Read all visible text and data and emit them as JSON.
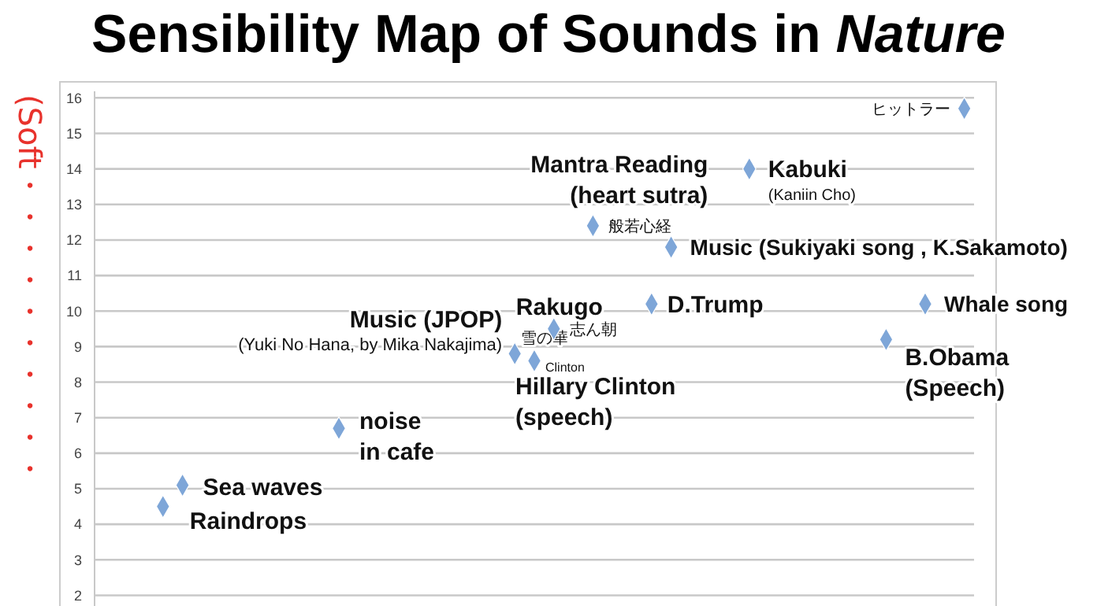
{
  "chart_data": {
    "type": "scatter",
    "title": "Sensibility Map of Sounds in Nature",
    "ylabel": "(Soft・・・・・・・・・・",
    "ylim": [
      1.7,
      16.45
    ],
    "yticks": [
      2,
      3,
      4,
      5,
      6,
      7,
      8,
      9,
      10,
      11,
      12,
      13,
      14,
      15,
      16
    ],
    "tick_labels": "y",
    "grid": "y",
    "marker": "diamond",
    "categories": [
      null,
      null,
      null,
      null,
      null,
      null,
      null,
      null,
      null,
      null,
      null,
      null,
      null,
      null,
      null,
      null,
      null,
      null,
      null,
      null,
      null,
      null,
      null,
      null,
      null,
      null,
      null,
      null,
      null,
      null,
      null,
      null,
      null,
      null,
      null,
      null,
      null,
      null,
      null,
      null,
      null,
      null,
      null,
      null,
      null
    ],
    "series": [
      {
        "color": "#7ea6d8",
        "values": [
          null,
          null,
          null,
          4.5,
          5.1,
          null,
          null,
          null,
          null,
          null,
          null,
          null,
          6.7,
          null,
          null,
          null,
          null,
          null,
          null,
          null,
          null,
          8.8,
          8.6,
          9.5,
          null,
          12.4,
          null,
          null,
          10.2,
          11.8,
          null,
          null,
          null,
          14.0,
          null,
          null,
          null,
          null,
          null,
          null,
          9.2,
          null,
          10.2,
          null,
          15.7
        ]
      }
    ],
    "annotations": [
      "Raindrops",
      "Sea waves",
      "noise\nin cafe",
      "Music (JPOP)",
      "(Yuki No Hana, by Mika Nakajima)",
      "雪の華",
      "Clinton",
      "Hillary Clinton\n(speech)",
      "Rakugo",
      "志ん朝",
      "般若心経",
      "Mantra Reading\n(heart sutra)",
      "Kabuki",
      "(Kaniin Cho)",
      "Music (Sukiyaki song , K.Sakamoto)",
      "D.Trump",
      "Whale song",
      "B.Obama\n(Speech)",
      "ヒットラー"
    ]
  }
}
